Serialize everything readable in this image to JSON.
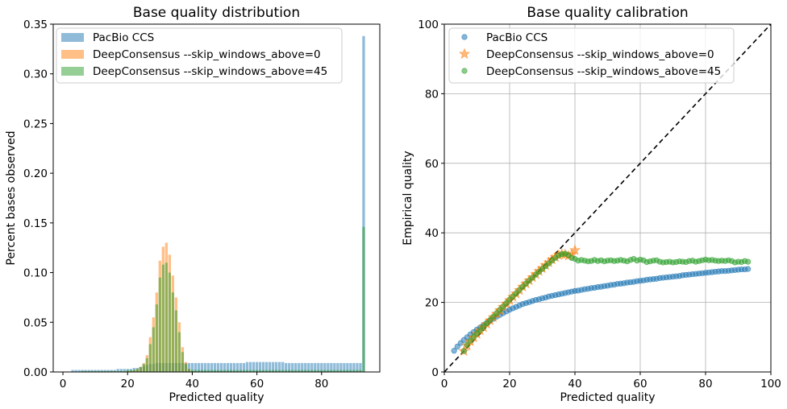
{
  "chart_data": [
    {
      "type": "bar",
      "title": "Base quality distribution",
      "xlabel": "Predicted quality",
      "ylabel": "Percent bases observed",
      "xlim": [
        -3,
        98
      ],
      "ylim": [
        0,
        0.35
      ],
      "xticks": [
        "0",
        "20",
        "40",
        "60",
        "80"
      ],
      "yticks": [
        "0.00",
        "0.05",
        "0.10",
        "0.15",
        "0.20",
        "0.25",
        "0.30",
        "0.35"
      ],
      "grid": false,
      "legend_position": "top-left",
      "series": [
        {
          "name": "PacBio CCS",
          "color": "#1f77b4",
          "x": [
            3,
            4,
            5,
            6,
            7,
            8,
            9,
            10,
            11,
            12,
            13,
            14,
            15,
            16,
            17,
            18,
            19,
            20,
            21,
            22,
            23,
            24,
            25,
            26,
            27,
            28,
            29,
            30,
            31,
            32,
            33,
            34,
            35,
            36,
            37,
            38,
            39,
            40,
            41,
            42,
            43,
            44,
            45,
            46,
            47,
            48,
            49,
            50,
            51,
            52,
            53,
            54,
            55,
            56,
            57,
            58,
            59,
            60,
            61,
            62,
            63,
            64,
            65,
            66,
            67,
            68,
            69,
            70,
            71,
            72,
            73,
            74,
            75,
            76,
            77,
            78,
            79,
            80,
            81,
            82,
            83,
            84,
            85,
            86,
            87,
            88,
            89,
            90,
            91,
            92,
            93
          ],
          "y": [
            0.002,
            0.002,
            0.002,
            0.002,
            0.002,
            0.002,
            0.002,
            0.002,
            0.002,
            0.002,
            0.002,
            0.002,
            0.002,
            0.002,
            0.003,
            0.003,
            0.003,
            0.003,
            0.003,
            0.004,
            0.004,
            0.005,
            0.006,
            0.007,
            0.008,
            0.008,
            0.009,
            0.009,
            0.009,
            0.009,
            0.009,
            0.009,
            0.009,
            0.009,
            0.009,
            0.009,
            0.009,
            0.009,
            0.009,
            0.009,
            0.009,
            0.009,
            0.009,
            0.009,
            0.009,
            0.009,
            0.009,
            0.009,
            0.009,
            0.009,
            0.009,
            0.009,
            0.009,
            0.009,
            0.01,
            0.01,
            0.01,
            0.01,
            0.01,
            0.01,
            0.01,
            0.01,
            0.01,
            0.01,
            0.01,
            0.01,
            0.009,
            0.009,
            0.009,
            0.009,
            0.009,
            0.009,
            0.009,
            0.009,
            0.009,
            0.009,
            0.009,
            0.009,
            0.009,
            0.009,
            0.009,
            0.009,
            0.009,
            0.009,
            0.009,
            0.009,
            0.009,
            0.009,
            0.009,
            0.009,
            0.338
          ]
        },
        {
          "name": "DeepConsensus --skip_windows_above=0",
          "color": "#ff7f0e",
          "x": [
            20,
            21,
            22,
            23,
            24,
            25,
            26,
            27,
            28,
            29,
            30,
            31,
            32,
            33,
            34,
            35,
            36,
            37,
            38,
            39,
            40,
            93
          ],
          "y": [
            0.001,
            0.001,
            0.002,
            0.003,
            0.005,
            0.009,
            0.017,
            0.035,
            0.055,
            0.08,
            0.112,
            0.126,
            0.13,
            0.118,
            0.097,
            0.075,
            0.05,
            0.025,
            0.01,
            0.003,
            0.001,
            0.0
          ]
        },
        {
          "name": "DeepConsensus --skip_windows_above=45",
          "color": "#2ca02c",
          "x": [
            3,
            4,
            5,
            6,
            7,
            8,
            9,
            10,
            11,
            12,
            13,
            14,
            15,
            16,
            17,
            18,
            19,
            20,
            21,
            22,
            23,
            24,
            25,
            26,
            27,
            28,
            29,
            30,
            31,
            32,
            33,
            34,
            35,
            36,
            37,
            38,
            39,
            40,
            41,
            42,
            43,
            44,
            45,
            46,
            47,
            48,
            49,
            50,
            51,
            52,
            53,
            54,
            55,
            56,
            57,
            58,
            59,
            60,
            61,
            62,
            63,
            64,
            65,
            66,
            67,
            68,
            69,
            70,
            71,
            72,
            73,
            74,
            75,
            76,
            77,
            78,
            79,
            80,
            81,
            82,
            83,
            84,
            85,
            86,
            87,
            88,
            89,
            90,
            91,
            92,
            93
          ],
          "y": [
            0.0,
            0.0,
            0.0,
            0.001,
            0.001,
            0.001,
            0.001,
            0.001,
            0.001,
            0.001,
            0.001,
            0.001,
            0.001,
            0.001,
            0.001,
            0.001,
            0.001,
            0.002,
            0.002,
            0.002,
            0.003,
            0.005,
            0.008,
            0.014,
            0.028,
            0.045,
            0.068,
            0.095,
            0.108,
            0.11,
            0.1,
            0.08,
            0.062,
            0.04,
            0.02,
            0.008,
            0.003,
            0.002,
            0.002,
            0.002,
            0.002,
            0.002,
            0.002,
            0.002,
            0.002,
            0.002,
            0.002,
            0.002,
            0.002,
            0.002,
            0.002,
            0.002,
            0.002,
            0.002,
            0.002,
            0.002,
            0.002,
            0.002,
            0.002,
            0.002,
            0.002,
            0.002,
            0.002,
            0.002,
            0.002,
            0.002,
            0.002,
            0.002,
            0.002,
            0.002,
            0.002,
            0.002,
            0.002,
            0.002,
            0.002,
            0.002,
            0.002,
            0.002,
            0.002,
            0.002,
            0.002,
            0.002,
            0.002,
            0.002,
            0.002,
            0.002,
            0.002,
            0.002,
            0.002,
            0.002,
            0.146
          ]
        }
      ]
    },
    {
      "type": "scatter",
      "title": "Base quality calibration",
      "xlabel": "Predicted quality",
      "ylabel": "Empirical quality",
      "xlim": [
        0,
        100
      ],
      "ylim": [
        0,
        100
      ],
      "xticks": [
        "0",
        "20",
        "40",
        "60",
        "80",
        "100"
      ],
      "yticks": [
        "0",
        "20",
        "40",
        "60",
        "80",
        "100"
      ],
      "grid": true,
      "legend_position": "top-left",
      "reference_line": {
        "style": "dashed",
        "color": "#000000",
        "from": [
          0,
          0
        ],
        "to": [
          100,
          100
        ]
      },
      "series": [
        {
          "name": "PacBio CCS",
          "marker": "circle",
          "color": "#1f77b4",
          "x": [
            3,
            4,
            5,
            6,
            7,
            8,
            9,
            10,
            11,
            12,
            13,
            14,
            15,
            16,
            17,
            18,
            19,
            20,
            21,
            22,
            23,
            24,
            25,
            26,
            27,
            28,
            29,
            30,
            31,
            32,
            33,
            34,
            35,
            36,
            37,
            38,
            39,
            40,
            41,
            42,
            43,
            44,
            45,
            46,
            47,
            48,
            49,
            50,
            51,
            52,
            53,
            54,
            55,
            56,
            57,
            58,
            59,
            60,
            61,
            62,
            63,
            64,
            65,
            66,
            67,
            68,
            69,
            70,
            71,
            72,
            73,
            74,
            75,
            76,
            77,
            78,
            79,
            80,
            81,
            82,
            83,
            84,
            85,
            86,
            87,
            88,
            89,
            90,
            91,
            92,
            93
          ],
          "y": [
            6.1,
            7.3,
            8.3,
            9.2,
            10.0,
            10.8,
            11.5,
            12.2,
            12.8,
            13.5,
            14.1,
            14.7,
            15.3,
            15.9,
            16.4,
            16.9,
            17.4,
            17.9,
            18.3,
            18.7,
            19.1,
            19.5,
            19.8,
            20.1,
            20.4,
            20.7,
            20.9,
            21.2,
            21.4,
            21.7,
            21.9,
            22.1,
            22.3,
            22.5,
            22.7,
            22.9,
            23.1,
            23.3,
            23.4,
            23.6,
            23.8,
            23.9,
            24.1,
            24.2,
            24.4,
            24.5,
            24.7,
            24.8,
            25.0,
            25.1,
            25.3,
            25.4,
            25.5,
            25.7,
            25.8,
            25.9,
            26.1,
            26.2,
            26.3,
            26.5,
            26.6,
            26.7,
            26.8,
            27.0,
            27.1,
            27.2,
            27.3,
            27.4,
            27.5,
            27.6,
            27.8,
            27.9,
            28.0,
            28.1,
            28.2,
            28.3,
            28.4,
            28.5,
            28.6,
            28.7,
            28.8,
            28.9,
            29.0,
            29.0,
            29.1,
            29.2,
            29.3,
            29.4,
            29.5,
            29.5,
            29.6
          ]
        },
        {
          "name": "DeepConsensus --skip_windows_above=0",
          "marker": "star",
          "color": "#ff7f0e",
          "x": [
            6,
            7,
            8,
            9,
            10,
            11,
            12,
            13,
            14,
            15,
            16,
            17,
            18,
            19,
            20,
            21,
            22,
            23,
            24,
            25,
            26,
            27,
            28,
            29,
            30,
            31,
            32,
            33,
            34,
            35,
            36,
            37,
            38,
            39,
            40
          ],
          "y": [
            6.0,
            7.6,
            8.8,
            9.9,
            10.9,
            11.9,
            12.8,
            13.8,
            14.8,
            15.7,
            16.7,
            17.7,
            18.7,
            19.6,
            20.6,
            21.6,
            22.5,
            23.5,
            24.5,
            25.4,
            26.3,
            27.2,
            28.1,
            29.0,
            29.8,
            30.7,
            31.5,
            32.3,
            33.0,
            33.6,
            33.9,
            33.8,
            33.4,
            33.8,
            35.0
          ]
        },
        {
          "name": "DeepConsensus --skip_windows_above=45",
          "marker": "circle",
          "color": "#2ca02c",
          "x": [
            6,
            7,
            8,
            9,
            10,
            11,
            12,
            13,
            14,
            15,
            16,
            17,
            18,
            19,
            20,
            21,
            22,
            23,
            24,
            25,
            26,
            27,
            28,
            29,
            30,
            31,
            32,
            33,
            34,
            35,
            36,
            37,
            38,
            39,
            40,
            41,
            42,
            43,
            44,
            45,
            46,
            47,
            48,
            49,
            50,
            51,
            52,
            53,
            54,
            55,
            56,
            57,
            58,
            59,
            60,
            61,
            62,
            63,
            64,
            65,
            66,
            67,
            68,
            69,
            70,
            71,
            72,
            73,
            74,
            75,
            76,
            77,
            78,
            79,
            80,
            81,
            82,
            83,
            84,
            85,
            86,
            87,
            88,
            89,
            90,
            91,
            92,
            93
          ],
          "y": [
            6.0,
            7.8,
            9.0,
            10.1,
            11.1,
            12.0,
            13.0,
            14.0,
            14.9,
            15.9,
            16.9,
            17.9,
            18.8,
            19.8,
            20.8,
            21.7,
            22.6,
            23.6,
            24.5,
            25.4,
            26.3,
            27.1,
            28.0,
            28.8,
            29.6,
            30.4,
            31.2,
            32.0,
            32.8,
            33.5,
            33.9,
            34.0,
            33.6,
            32.8,
            32.5,
            32.0,
            32.2,
            32.0,
            31.8,
            31.9,
            32.2,
            31.9,
            32.1,
            31.8,
            32.0,
            32.1,
            31.9,
            32.0,
            32.2,
            32.0,
            31.8,
            32.2,
            32.5,
            32.0,
            32.3,
            32.1,
            31.6,
            31.8,
            32.0,
            32.1,
            31.7,
            31.5,
            31.6,
            31.7,
            31.5,
            31.6,
            31.8,
            31.7,
            31.6,
            31.9,
            32.0,
            31.7,
            31.9,
            32.1,
            32.3,
            32.1,
            32.2,
            32.0,
            31.9,
            32.0,
            31.9,
            32.1,
            31.9,
            31.5,
            31.7,
            31.6,
            31.9,
            31.7
          ]
        }
      ]
    }
  ]
}
